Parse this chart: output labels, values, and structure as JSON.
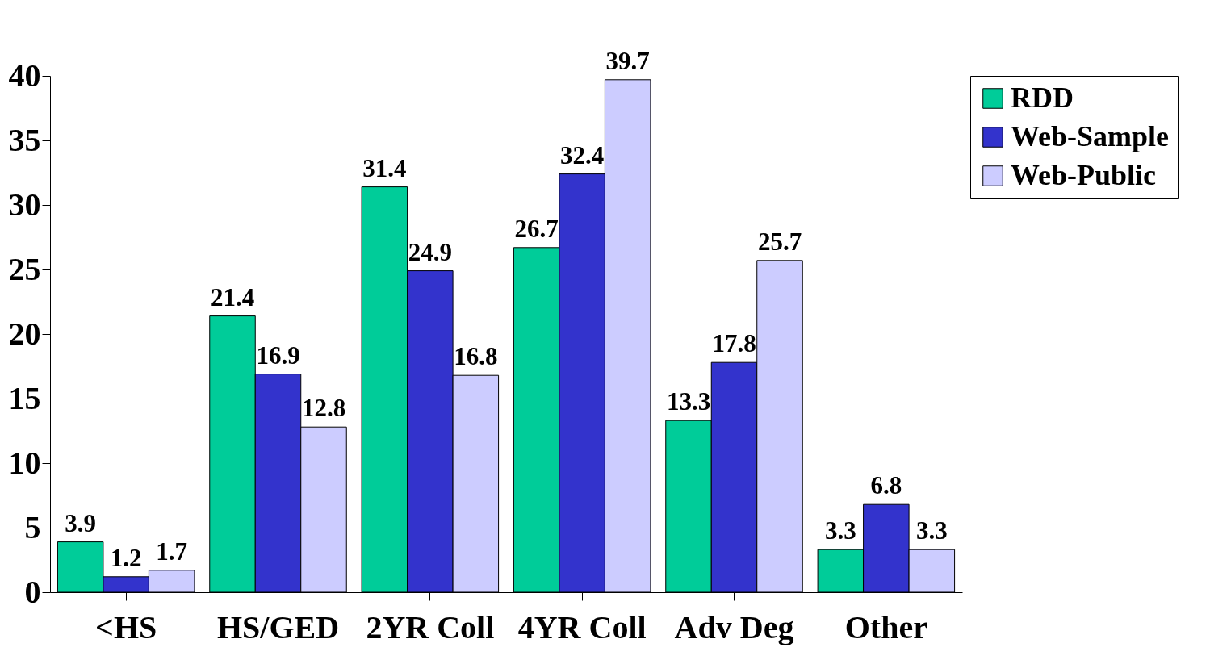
{
  "chart_data": {
    "type": "bar",
    "categories": [
      "<HS",
      "HS/GED",
      "2YR Coll",
      "4YR Coll",
      "Adv Deg",
      "Other"
    ],
    "series": [
      {
        "name": "RDD",
        "color": "#00cc99",
        "values": [
          3.9,
          21.4,
          31.4,
          26.7,
          13.3,
          3.3
        ]
      },
      {
        "name": "Web-Sample",
        "color": "#3333cc",
        "values": [
          1.2,
          16.9,
          24.9,
          32.4,
          17.8,
          6.8
        ]
      },
      {
        "name": "Web-Public",
        "color": "#ccccff",
        "values": [
          1.7,
          12.8,
          16.8,
          39.7,
          25.7,
          3.3
        ]
      }
    ],
    "ylim": [
      0,
      40
    ],
    "yticks": [
      0,
      5,
      10,
      15,
      20,
      25,
      30,
      35,
      40
    ],
    "data_labels": true,
    "legend": "right"
  }
}
